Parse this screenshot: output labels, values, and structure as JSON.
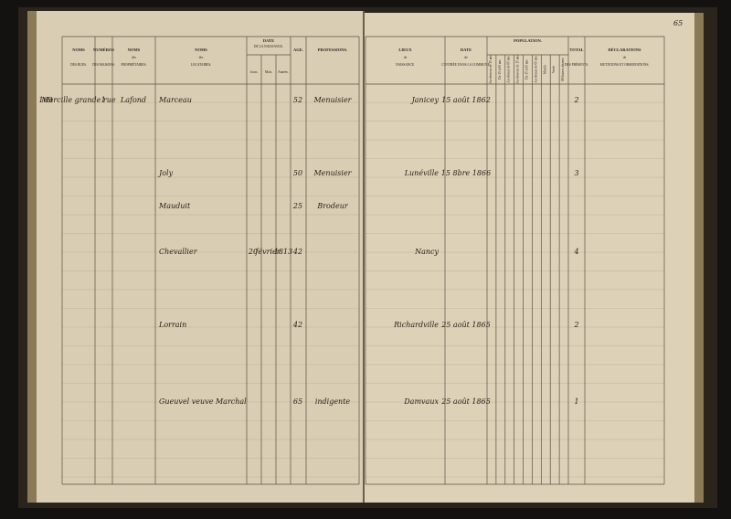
{
  "page_number": "65",
  "left_columns": [
    {
      "title": "NOMS",
      "sub": "DES RUES."
    },
    {
      "title": "NUMÉROS",
      "sub": "DES MAISONS."
    },
    {
      "title": "NOMS",
      "mid": "des",
      "sub": "PROPRIÉTAIRES."
    },
    {
      "title": "NOMS",
      "mid": "des",
      "sub": "LOCATAIRES."
    },
    {
      "title": "DATE",
      "sub": "DE LA NAISSANCE.",
      "parts": [
        "Jours.",
        "Mois.",
        "Années."
      ]
    },
    {
      "title": "AGE."
    },
    {
      "title": "PROFESSIONS."
    }
  ],
  "right_columns": [
    {
      "title": "LIEUX",
      "mid": "de",
      "sub": "NAISSANCE."
    },
    {
      "title": "DATE",
      "mid": "de",
      "sub": "L'ENTRÉE DANS LA COMMUNE."
    },
    {
      "title": "POPULATION.",
      "parts": [
        "Au-dessous de 15 ans",
        "De 15 à 60 ans",
        "Au-dessus de 60 ans",
        "Au-dessous de 15 ans",
        "De 15 à 60 ans",
        "Au-dessus de 60 ans",
        "Mariés",
        "Veufs",
        "Militaires absents"
      ]
    },
    {
      "title": "TOTAL",
      "sub": "DES PRÉSENTS."
    },
    {
      "title": "DÉCLARATIONS",
      "mid": "de",
      "sub": "MUTATIONS ET OBSERVATIONS."
    }
  ],
  "entries": [
    {
      "numero": "169",
      "rue": "Marcille grande rue",
      "maison": "1",
      "proprietaire": "Lafond",
      "locataire": "Marceau",
      "age": "52",
      "profession": "Menuisier",
      "lieu": "Janicey",
      "date": "15 août 1862",
      "total": "2"
    },
    {
      "locataire": "Joly",
      "age": "50",
      "profession": "Menuisier",
      "lieu": "Lunéville",
      "date": "15 8bre 1866",
      "total": "3"
    },
    {
      "locataire": "Mauduit",
      "age": "25",
      "profession": "Brodeur"
    },
    {
      "locataire": "Chevallier",
      "jour": "20",
      "mois": "février",
      "annee": "1813",
      "age": "42",
      "lieu": "Nancy",
      "total": "4"
    },
    {
      "locataire": "Lorrain",
      "age": "42",
      "lieu": "Richardville",
      "date": "25 août 1865",
      "total": "2"
    },
    {
      "locataire": "Gueuvel veuve Marchal",
      "age": "65",
      "profession": "indigente",
      "lieu": "Damvaux",
      "date": "25 août 1865",
      "total": "1"
    }
  ]
}
